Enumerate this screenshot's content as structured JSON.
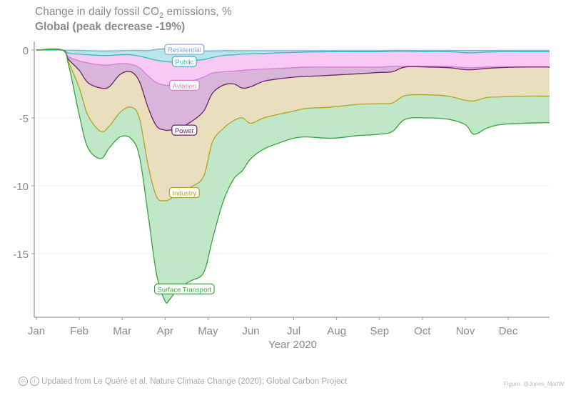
{
  "header": {
    "title_prefix": "Change in daily fossil CO",
    "title_sub": "2",
    "title_suffix": " emissions, %",
    "subtitle": "Global (peak decrease -19%)"
  },
  "footer": {
    "cc_icon": "cc-icon",
    "by_icon": "attribution-icon",
    "cc_glyph": "cc",
    "by_glyph": "i",
    "source": "Updated from Le Quéré et al. Nature Climate Change (2020); Global Carbon Project",
    "credit": "·Figure: @Jones_MattW"
  },
  "chart_data": {
    "type": "area",
    "title": "Change in daily fossil CO2 emissions, %",
    "subtitle": "Global (peak decrease -19%)",
    "xlabel": "Year 2020",
    "ylabel": "",
    "x_unit": "months since Jan 1",
    "xlim": [
      0,
      12
    ],
    "ylim": [
      -19.8,
      0.6
    ],
    "grid": true,
    "stacked": true,
    "x_ticks": [
      {
        "value": 0,
        "label": "Jan"
      },
      {
        "value": 1,
        "label": "Feb"
      },
      {
        "value": 2,
        "label": "Mar"
      },
      {
        "value": 3,
        "label": "Apr"
      },
      {
        "value": 4,
        "label": "May"
      },
      {
        "value": 5,
        "label": "Jun"
      },
      {
        "value": 6,
        "label": "Jul"
      },
      {
        "value": 7,
        "label": "Aug"
      },
      {
        "value": 8,
        "label": "Sep"
      },
      {
        "value": 9,
        "label": "Oct"
      },
      {
        "value": 10,
        "label": "Nov"
      },
      {
        "value": 11,
        "label": "Dec"
      }
    ],
    "y_ticks": [
      {
        "value": 0,
        "label": "0"
      },
      {
        "value": -5,
        "label": "-5"
      },
      {
        "value": -10,
        "label": "-10"
      },
      {
        "value": -15,
        "label": "-15"
      }
    ],
    "x": [
      0,
      0.6,
      0.75,
      1.0,
      1.2,
      1.5,
      1.7,
      1.95,
      2.2,
      2.4,
      2.6,
      2.8,
      3.0,
      3.1,
      3.3,
      3.6,
      3.9,
      4.1,
      4.35,
      4.6,
      4.8,
      5.0,
      5.3,
      5.7,
      6.0,
      6.3,
      6.9,
      7.5,
      8.0,
      8.3,
      8.6,
      9.1,
      9.6,
      10.0,
      10.2,
      10.5,
      10.8,
      11.3,
      12.0
    ],
    "series": [
      {
        "name": "Residential",
        "label": "Residential",
        "color": "#7fa7e0",
        "fill": "#cfe0f7",
        "cumulative": [
          0,
          0,
          -0.02,
          -0.03,
          -0.05,
          -0.08,
          -0.08,
          -0.05,
          -0.03,
          -0.03,
          -0.05,
          0.05,
          0.1,
          0.1,
          0.05,
          -0.05,
          -0.08,
          -0.08,
          -0.05,
          -0.05,
          -0.05,
          -0.05,
          -0.05,
          -0.05,
          -0.05,
          -0.05,
          -0.05,
          -0.05,
          -0.05,
          -0.03,
          -0.03,
          -0.03,
          -0.03,
          -0.03,
          -0.03,
          -0.03,
          -0.03,
          -0.03,
          -0.03
        ]
      },
      {
        "name": "Public",
        "label": "Public",
        "color": "#36b8be",
        "fill": "#b3e6e8",
        "cumulative": [
          0,
          0,
          -0.25,
          -0.3,
          -0.35,
          -0.4,
          -0.4,
          -0.35,
          -0.35,
          -0.45,
          -0.6,
          -0.75,
          -0.85,
          -0.88,
          -0.85,
          -0.8,
          -0.7,
          -0.55,
          -0.4,
          -0.35,
          -0.3,
          -0.28,
          -0.25,
          -0.2,
          -0.18,
          -0.15,
          -0.12,
          -0.12,
          -0.12,
          -0.1,
          -0.1,
          -0.12,
          -0.12,
          -0.2,
          -0.2,
          -0.15,
          -0.12,
          -0.12,
          -0.12
        ]
      },
      {
        "name": "Aviation",
        "label": "Aviation",
        "color": "#d77ad8",
        "fill": "#f9c6f5",
        "cumulative": [
          0,
          0,
          -0.5,
          -0.8,
          -0.95,
          -1.1,
          -1.1,
          -1.0,
          -1.05,
          -1.3,
          -1.9,
          -2.4,
          -2.6,
          -2.6,
          -2.5,
          -2.3,
          -2.0,
          -1.7,
          -1.6,
          -1.55,
          -1.5,
          -1.45,
          -1.4,
          -1.35,
          -1.3,
          -1.25,
          -1.25,
          -1.25,
          -1.25,
          -1.2,
          -1.2,
          -1.2,
          -1.2,
          -1.3,
          -1.3,
          -1.25,
          -1.25,
          -1.25,
          -1.25
        ]
      },
      {
        "name": "Power",
        "label": "Power",
        "color": "#6e1f6e",
        "fill": "#d8b1d8",
        "cumulative": [
          0,
          0,
          -0.7,
          -1.5,
          -2.4,
          -2.8,
          -2.7,
          -1.8,
          -1.6,
          -2.3,
          -4.2,
          -5.6,
          -5.9,
          -5.9,
          -5.8,
          -5.3,
          -4.5,
          -3.2,
          -2.6,
          -2.5,
          -2.8,
          -2.7,
          -2.3,
          -2.1,
          -2.0,
          -1.95,
          -1.85,
          -1.75,
          -1.65,
          -1.6,
          -1.25,
          -1.25,
          -1.3,
          -1.45,
          -1.45,
          -1.35,
          -1.3,
          -1.25,
          -1.25
        ]
      },
      {
        "name": "Industry",
        "label": "Industry",
        "color": "#b5a020",
        "fill": "#e8ddbb",
        "cumulative": [
          0,
          0,
          -0.9,
          -2.8,
          -4.8,
          -6.0,
          -5.6,
          -4.6,
          -4.2,
          -5.0,
          -8.4,
          -10.8,
          -11.1,
          -11.0,
          -10.6,
          -10.1,
          -9.3,
          -6.8,
          -5.8,
          -5.2,
          -5.0,
          -5.4,
          -5.0,
          -4.7,
          -4.5,
          -4.3,
          -4.2,
          -4.0,
          -3.95,
          -3.9,
          -3.35,
          -3.3,
          -3.4,
          -3.7,
          -3.75,
          -3.5,
          -3.45,
          -3.4,
          -3.4
        ]
      },
      {
        "name": "Surface Transport",
        "label": "Surface Transport",
        "color": "#37a33c",
        "fill": "#bde6c4",
        "cumulative": [
          0,
          0,
          -1.1,
          -4.8,
          -7.2,
          -8.0,
          -7.2,
          -6.4,
          -6.5,
          -7.8,
          -12.0,
          -16.5,
          -18.5,
          -18.4,
          -17.6,
          -17.0,
          -16.4,
          -14.0,
          -11.2,
          -9.5,
          -8.9,
          -8.0,
          -7.3,
          -6.8,
          -6.5,
          -6.4,
          -6.5,
          -6.3,
          -6.2,
          -6.0,
          -5.1,
          -5.0,
          -5.1,
          -5.5,
          -6.2,
          -5.75,
          -5.5,
          -5.4,
          -5.35
        ]
      }
    ],
    "annotations": [
      {
        "series": "Residential",
        "x": 3.45,
        "y": 0.05
      },
      {
        "series": "Public",
        "x": 3.45,
        "y": -0.85
      },
      {
        "series": "Aviation",
        "x": 3.45,
        "y": -2.6
      },
      {
        "series": "Power",
        "x": 3.45,
        "y": -5.9
      },
      {
        "series": "Industry",
        "x": 3.45,
        "y": -10.5
      },
      {
        "series": "Surface Transport",
        "x": 3.45,
        "y": -17.6
      }
    ]
  }
}
